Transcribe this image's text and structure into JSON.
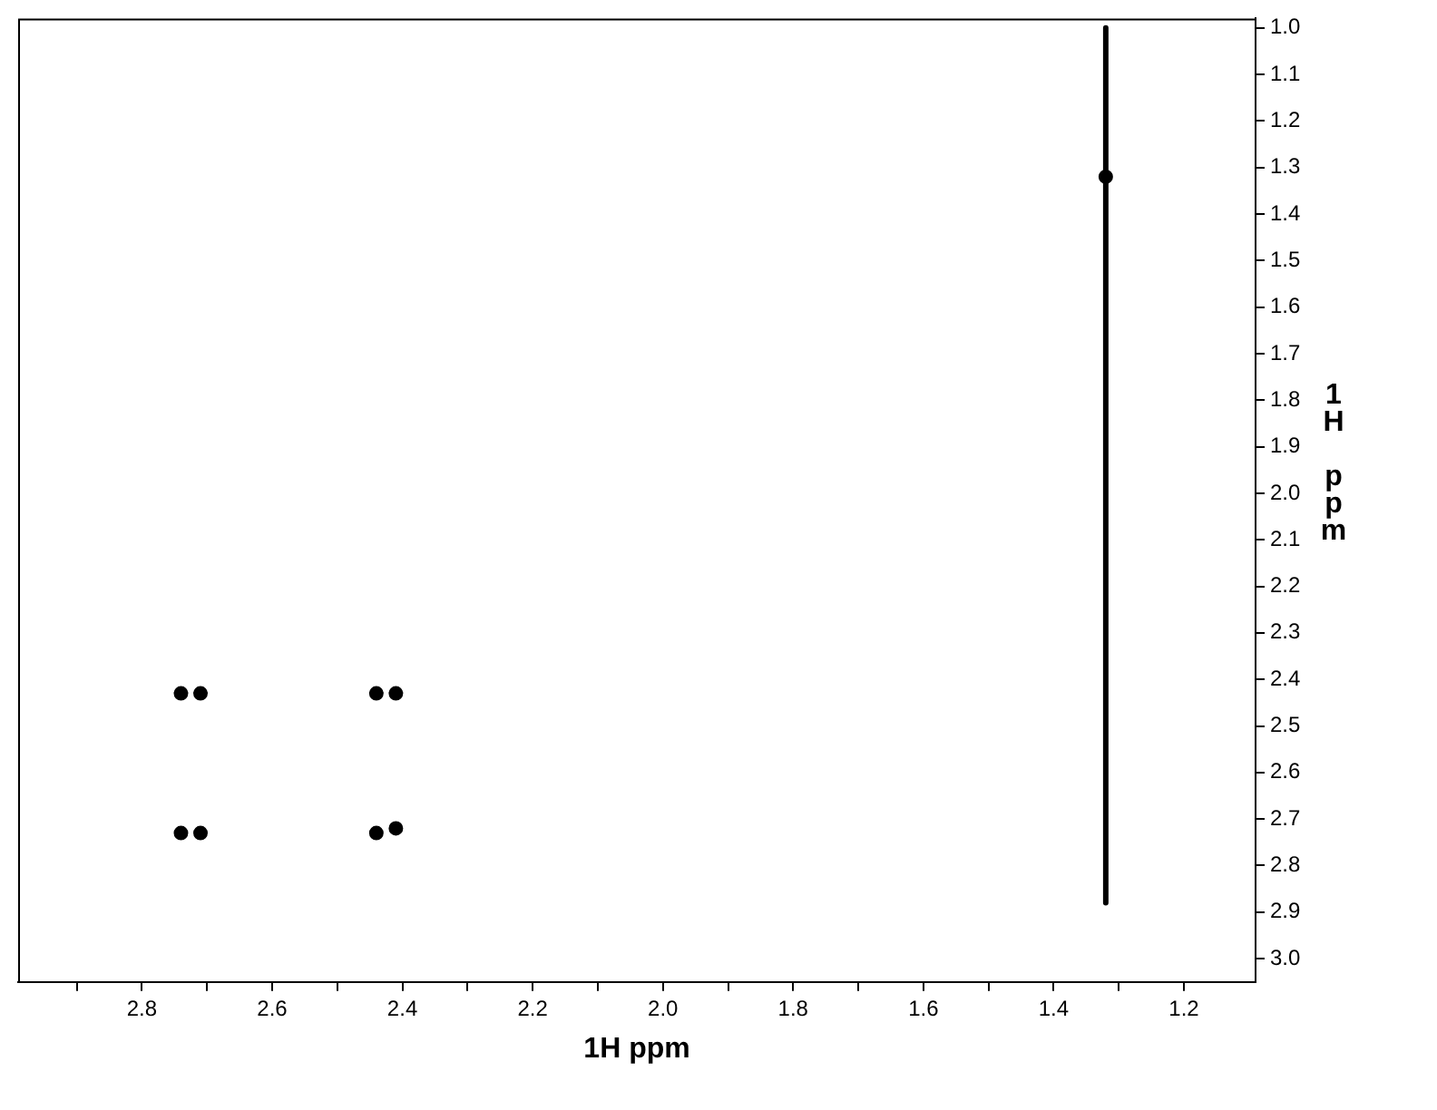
{
  "chart_data": {
    "type": "scatter",
    "xlabel": "1H ppm",
    "ylabel": "1H ppm",
    "xlim": [
      2.99,
      1.09
    ],
    "ylim": [
      3.05,
      0.98
    ],
    "xticks": [
      {
        "value": 2.9,
        "label": null
      },
      {
        "value": 2.8,
        "label": "2.8"
      },
      {
        "value": 2.7,
        "label": null
      },
      {
        "value": 2.6,
        "label": "2.6"
      },
      {
        "value": 2.5,
        "label": null
      },
      {
        "value": 2.4,
        "label": "2.4"
      },
      {
        "value": 2.3,
        "label": null
      },
      {
        "value": 2.2,
        "label": "2.2"
      },
      {
        "value": 2.1,
        "label": null
      },
      {
        "value": 2.0,
        "label": "2.0"
      },
      {
        "value": 1.9,
        "label": null
      },
      {
        "value": 1.8,
        "label": "1.8"
      },
      {
        "value": 1.7,
        "label": null
      },
      {
        "value": 1.6,
        "label": "1.6"
      },
      {
        "value": 1.5,
        "label": null
      },
      {
        "value": 1.4,
        "label": "1.4"
      },
      {
        "value": 1.3,
        "label": null
      },
      {
        "value": 1.2,
        "label": "1.2"
      }
    ],
    "yticks": [
      {
        "value": 1.0,
        "label": "1.0"
      },
      {
        "value": 1.1,
        "label": "1.1"
      },
      {
        "value": 1.2,
        "label": "1.2"
      },
      {
        "value": 1.3,
        "label": "1.3"
      },
      {
        "value": 1.4,
        "label": "1.4"
      },
      {
        "value": 1.5,
        "label": "1.5"
      },
      {
        "value": 1.6,
        "label": "1.6"
      },
      {
        "value": 1.7,
        "label": "1.7"
      },
      {
        "value": 1.8,
        "label": "1.8"
      },
      {
        "value": 1.9,
        "label": "1.9"
      },
      {
        "value": 2.0,
        "label": "2.0"
      },
      {
        "value": 2.1,
        "label": "2.1"
      },
      {
        "value": 2.2,
        "label": "2.2"
      },
      {
        "value": 2.3,
        "label": "2.3"
      },
      {
        "value": 2.4,
        "label": "2.4"
      },
      {
        "value": 2.5,
        "label": "2.5"
      },
      {
        "value": 2.6,
        "label": "2.6"
      },
      {
        "value": 2.7,
        "label": "2.7"
      },
      {
        "value": 2.8,
        "label": "2.8"
      },
      {
        "value": 2.9,
        "label": "2.9"
      },
      {
        "value": 3.0,
        "label": "3.0"
      }
    ],
    "grid": false,
    "legend": false,
    "series": [
      {
        "marker": "circle",
        "color": "#000000",
        "x": [
          2.74,
          2.71,
          2.44,
          2.41,
          2.74,
          2.71,
          2.44,
          2.41,
          1.32
        ],
        "values": [
          2.43,
          2.43,
          2.43,
          2.43,
          2.73,
          2.73,
          2.73,
          2.72,
          1.32
        ]
      },
      {
        "type": "line",
        "color": "#000000",
        "x": [
          1.32,
          1.32
        ],
        "values": [
          1.0,
          2.88
        ]
      }
    ]
  }
}
